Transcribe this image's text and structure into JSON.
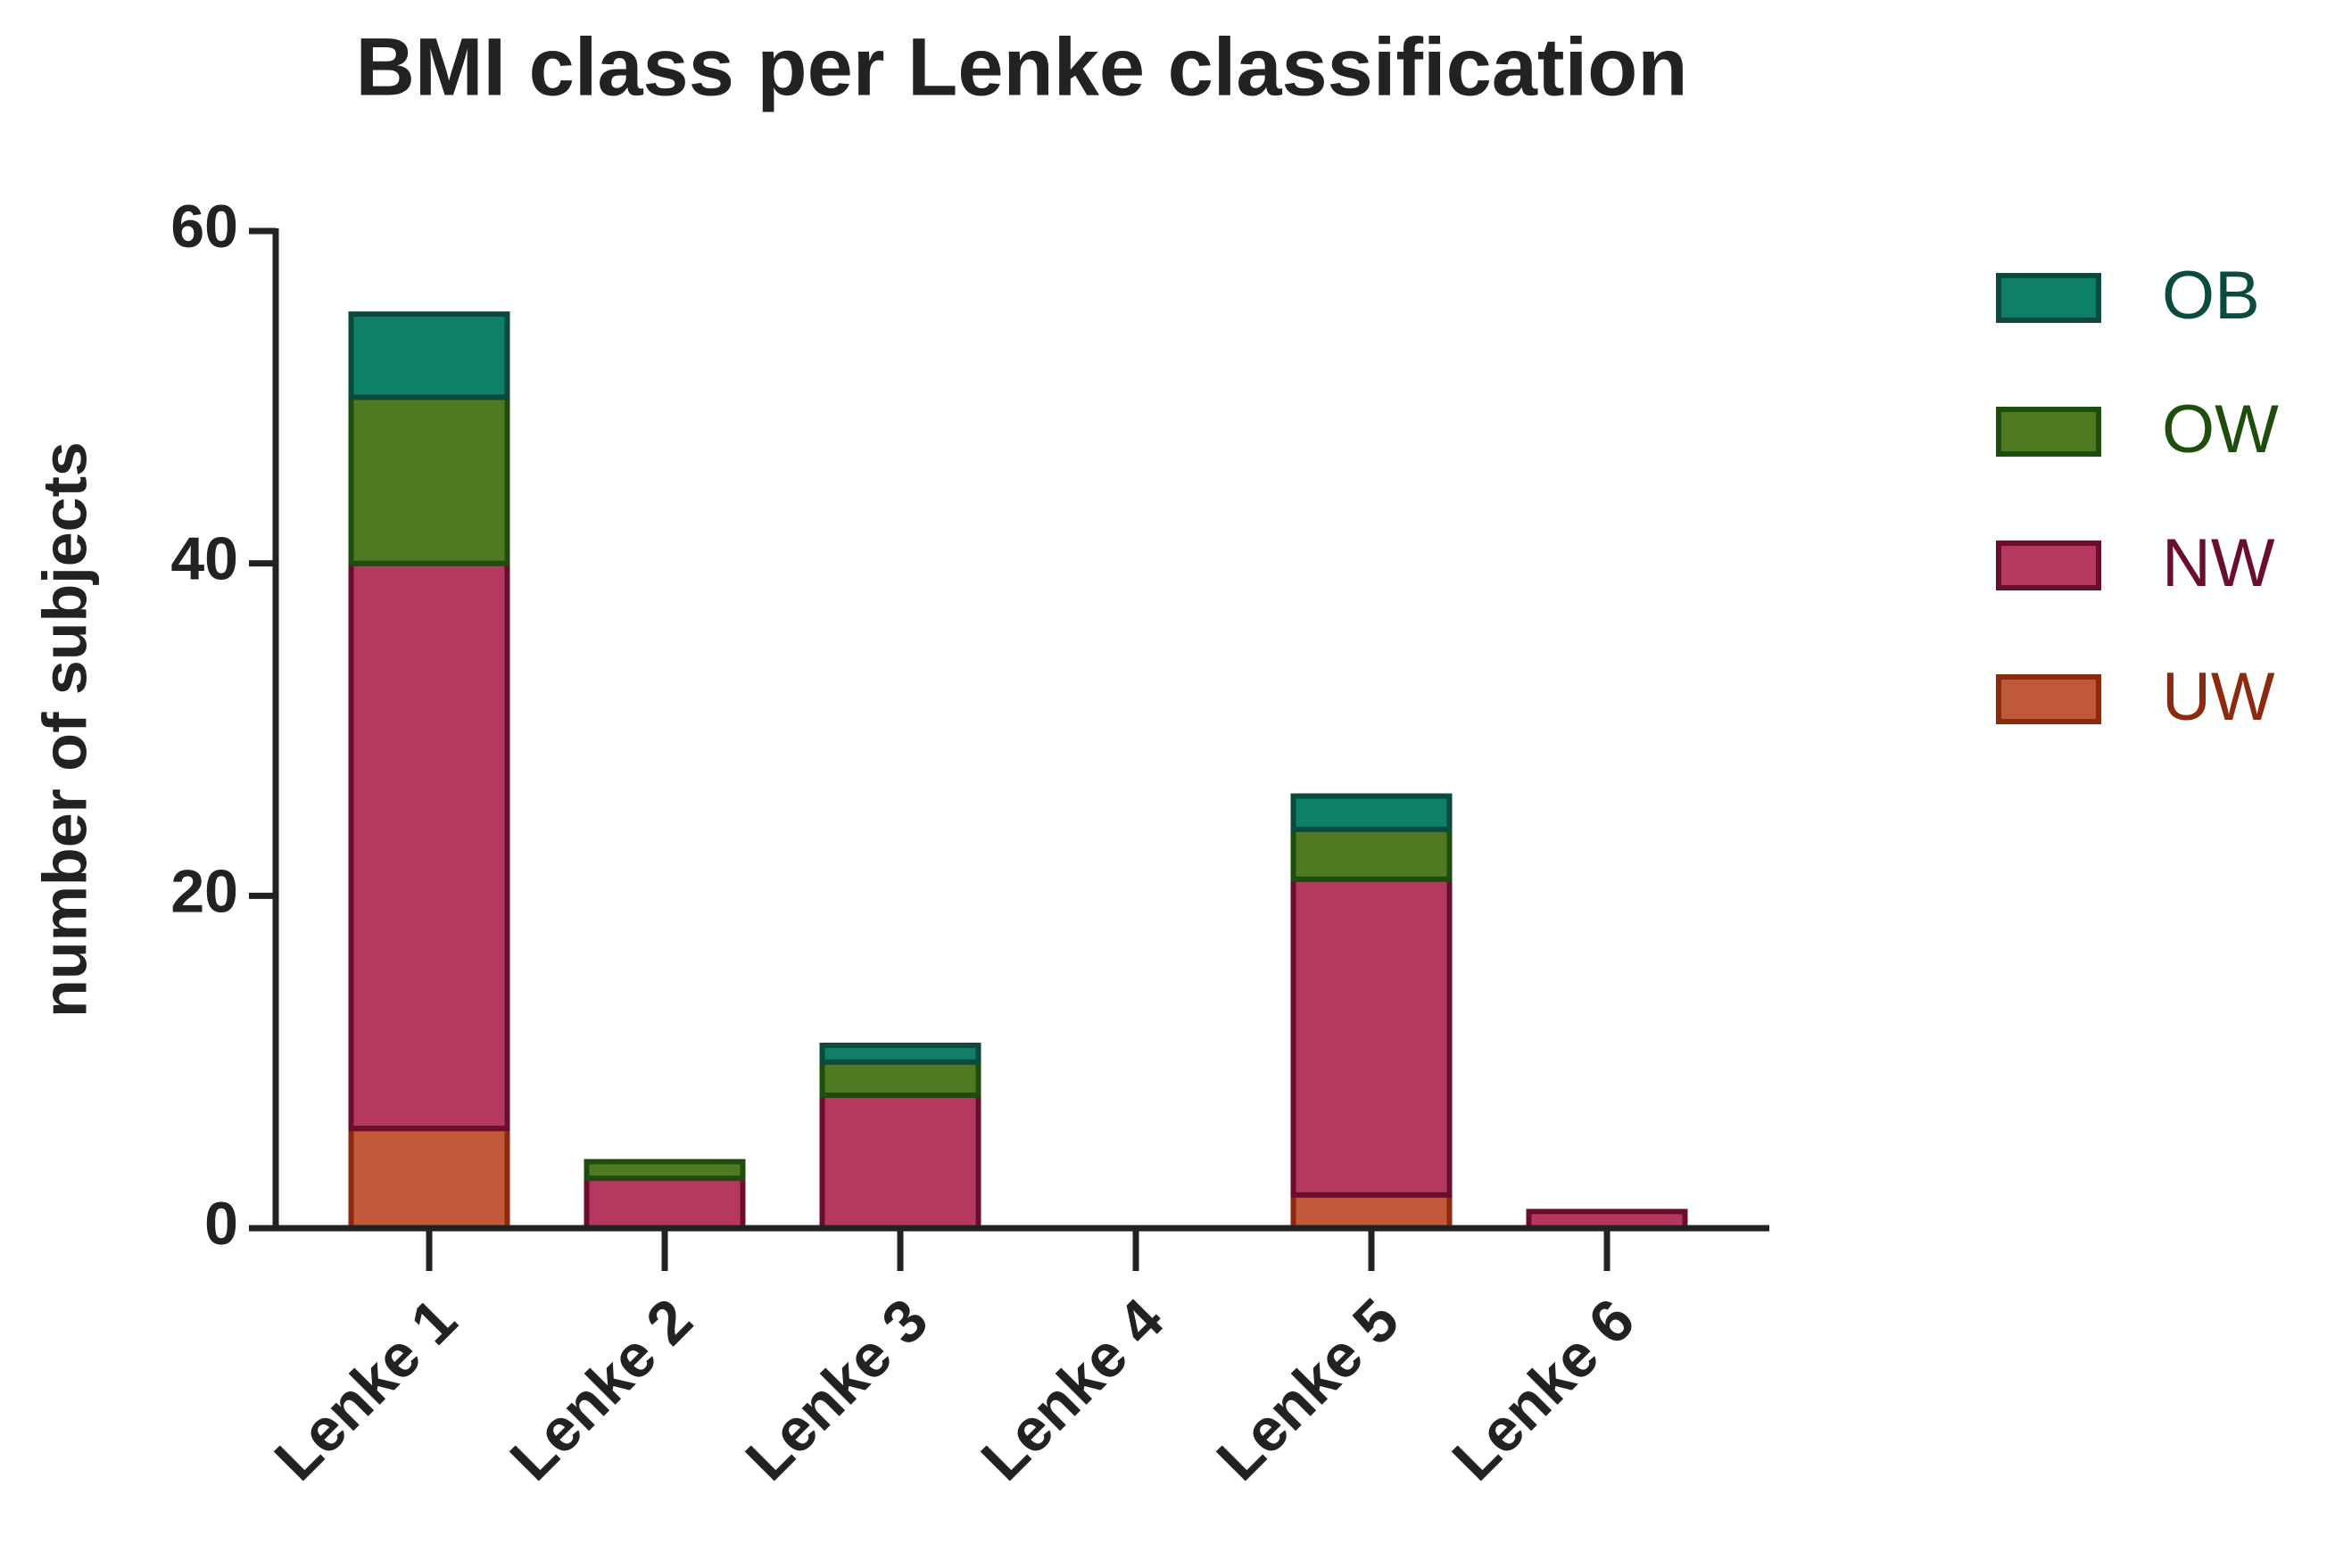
{
  "chart_data": {
    "type": "stacked_bar",
    "title": "BMI class per Lenke classification",
    "y_label": "number of subjects",
    "categories": [
      "Lenke 1",
      "Lenke 2",
      "Lenke 3",
      "Lenke 4",
      "Lenke 5",
      "Lenke 6"
    ],
    "series": [
      {
        "name": "UW",
        "color": "#c0583a",
        "edge": "#8b2a0e",
        "values": [
          6,
          0,
          0,
          0,
          2,
          0
        ]
      },
      {
        "name": "NW",
        "color": "#b5395e",
        "edge": "#6b0d2e",
        "values": [
          34,
          3,
          8,
          0,
          19,
          1
        ]
      },
      {
        "name": "OW",
        "color": "#4f7a22",
        "edge": "#1f4d0e",
        "values": [
          10,
          1,
          2,
          0,
          3,
          0
        ]
      },
      {
        "name": "OB",
        "color": "#0f7f6a",
        "edge": "#0b4a3e",
        "values": [
          5,
          0,
          1,
          0,
          2,
          0
        ]
      }
    ],
    "ylim": [
      0,
      60
    ],
    "yticks": [
      0,
      20,
      40,
      60
    ],
    "legend": "right"
  }
}
